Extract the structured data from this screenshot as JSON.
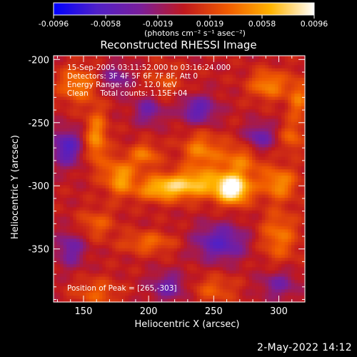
{
  "colorbar": {
    "tick_labels": [
      "-0.0096",
      "-0.0058",
      "-0.0019",
      "0.0019",
      "0.0058",
      "0.0096"
    ],
    "unit_label": "(photons cm⁻² s⁻¹ asec⁻²)",
    "stops": [
      "#0000ff",
      "#5020c8",
      "#7a1e9a",
      "#c0181e",
      "#f05a00",
      "#ffb400",
      "#ffffff"
    ]
  },
  "chart_data": {
    "type": "heatmap",
    "title": "Reconstructed RHESSI Image",
    "xlabel": "Heliocentric X (arcsec)",
    "ylabel": "Heliocentric Y (arcsec)",
    "xlim": [
      127,
      320
    ],
    "ylim": [
      -392,
      -197
    ],
    "x_ticks": [
      150,
      200,
      250,
      300
    ],
    "y_ticks": [
      -200,
      -250,
      -300,
      -350
    ],
    "value_range": [
      -0.0096,
      0.0096
    ],
    "grid": false,
    "annotations": [
      "15-Sep-2005 03:11:52.000 to 03:16:24.000",
      "Detectors: 3F 4F 5F 6F 7F 8F, Att 0",
      "Energy Range: 6.0 - 12.0 keV",
      "Clean     Total counts: 1.15E+04"
    ],
    "peak_label": "Position of Peak = [265,-303]",
    "peak": [
      265,
      -303
    ],
    "sources": [
      {
        "x": 265,
        "y": -303,
        "amp": 0.0098,
        "sx": 9,
        "sy": 8
      },
      {
        "x": 238,
        "y": -298,
        "amp": 0.006,
        "sx": 16,
        "sy": 8
      },
      {
        "x": 210,
        "y": -302,
        "amp": 0.0062,
        "sx": 14,
        "sy": 7
      },
      {
        "x": 178,
        "y": -293,
        "amp": 0.0056,
        "sx": 8,
        "sy": 10
      },
      {
        "x": 160,
        "y": -262,
        "amp": 0.005,
        "sx": 6,
        "sy": 16
      },
      {
        "x": 145,
        "y": -220,
        "amp": 0.0045,
        "sx": 10,
        "sy": 10
      },
      {
        "x": 197,
        "y": -276,
        "amp": 0.0042,
        "sx": 8,
        "sy": 7
      },
      {
        "x": 240,
        "y": -272,
        "amp": 0.0044,
        "sx": 10,
        "sy": 10
      },
      {
        "x": 270,
        "y": -280,
        "amp": 0.004,
        "sx": 12,
        "sy": 10
      },
      {
        "x": 300,
        "y": -298,
        "amp": 0.005,
        "sx": 10,
        "sy": 9
      },
      {
        "x": 292,
        "y": -220,
        "amp": 0.0048,
        "sx": 10,
        "sy": 8
      },
      {
        "x": 315,
        "y": -232,
        "amp": 0.0038,
        "sx": 6,
        "sy": 12
      },
      {
        "x": 310,
        "y": -262,
        "amp": 0.0034,
        "sx": 6,
        "sy": 8
      },
      {
        "x": 200,
        "y": -345,
        "amp": 0.0036,
        "sx": 14,
        "sy": 6
      },
      {
        "x": 160,
        "y": -330,
        "amp": 0.003,
        "sx": 10,
        "sy": 8
      },
      {
        "x": 300,
        "y": -340,
        "amp": 0.004,
        "sx": 10,
        "sy": 14
      },
      {
        "x": 160,
        "y": -385,
        "amp": 0.003,
        "sx": 12,
        "sy": 8
      },
      {
        "x": 250,
        "y": -382,
        "amp": 0.0028,
        "sx": 12,
        "sy": 8
      },
      {
        "x": 212,
        "y": -218,
        "amp": 0.0022,
        "sx": 10,
        "sy": 10
      },
      {
        "x": 238,
        "y": -240,
        "amp": -0.005,
        "sx": 10,
        "sy": 8
      },
      {
        "x": 137,
        "y": -270,
        "amp": -0.006,
        "sx": 8,
        "sy": 10
      },
      {
        "x": 200,
        "y": -240,
        "amp": -0.004,
        "sx": 8,
        "sy": 8
      },
      {
        "x": 255,
        "y": -345,
        "amp": -0.0055,
        "sx": 14,
        "sy": 10
      },
      {
        "x": 285,
        "y": -262,
        "amp": -0.0045,
        "sx": 8,
        "sy": 8
      },
      {
        "x": 215,
        "y": -380,
        "amp": -0.004,
        "sx": 10,
        "sy": 8
      },
      {
        "x": 140,
        "y": -350,
        "amp": -0.004,
        "sx": 8,
        "sy": 10
      },
      {
        "x": 300,
        "y": -378,
        "amp": -0.0035,
        "sx": 10,
        "sy": 8
      },
      {
        "x": 175,
        "y": -215,
        "amp": -0.0035,
        "sx": 8,
        "sy": 8
      }
    ]
  },
  "footer": {
    "date_stamp": "2-May-2022 14:12"
  }
}
